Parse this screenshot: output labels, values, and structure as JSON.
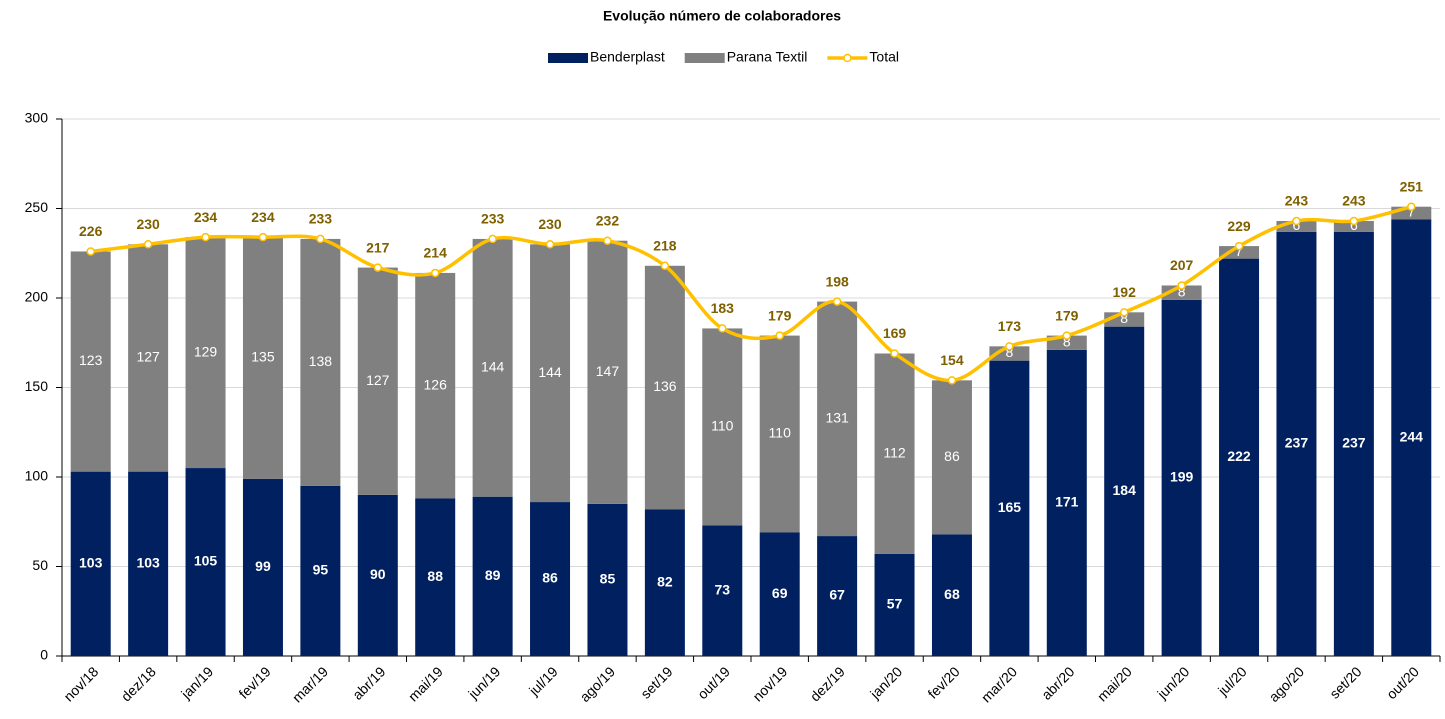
{
  "chart_data": {
    "type": "stacked_bar_line",
    "title": "Evolução número de colaboradores",
    "categories": [
      "nov/18",
      "dez/18",
      "jan/19",
      "fev/19",
      "mar/19",
      "abr/19",
      "mai/19",
      "jun/19",
      "jul/19",
      "ago/19",
      "set/19",
      "out/19",
      "nov/19",
      "dez/19",
      "jan/20",
      "fev/20",
      "mar/20",
      "abr/20",
      "mai/20",
      "jun/20",
      "jul/20",
      "ago/20",
      "set/20",
      "out/20"
    ],
    "series": [
      {
        "name": "Benderplast",
        "color": "#002060",
        "values": [
          103,
          103,
          105,
          99,
          95,
          90,
          88,
          89,
          86,
          85,
          82,
          73,
          69,
          67,
          57,
          68,
          165,
          171,
          184,
          199,
          222,
          237,
          237,
          244
        ]
      },
      {
        "name": "Parana Textil",
        "color": "#808080",
        "values": [
          123,
          127,
          129,
          135,
          138,
          127,
          126,
          144,
          144,
          147,
          136,
          110,
          110,
          131,
          112,
          86,
          8,
          8,
          8,
          8,
          7,
          6,
          6,
          7
        ]
      },
      {
        "name": "Total",
        "color": "#FFC000",
        "type": "line",
        "values": [
          226,
          230,
          234,
          234,
          233,
          217,
          214,
          233,
          230,
          232,
          218,
          183,
          179,
          198,
          169,
          154,
          173,
          179,
          192,
          207,
          229,
          243,
          243,
          251
        ]
      }
    ],
    "ylim": [
      0,
      300
    ],
    "yticks": [
      0,
      50,
      100,
      150,
      200,
      250,
      300
    ],
    "grid": true,
    "legend": "top"
  }
}
